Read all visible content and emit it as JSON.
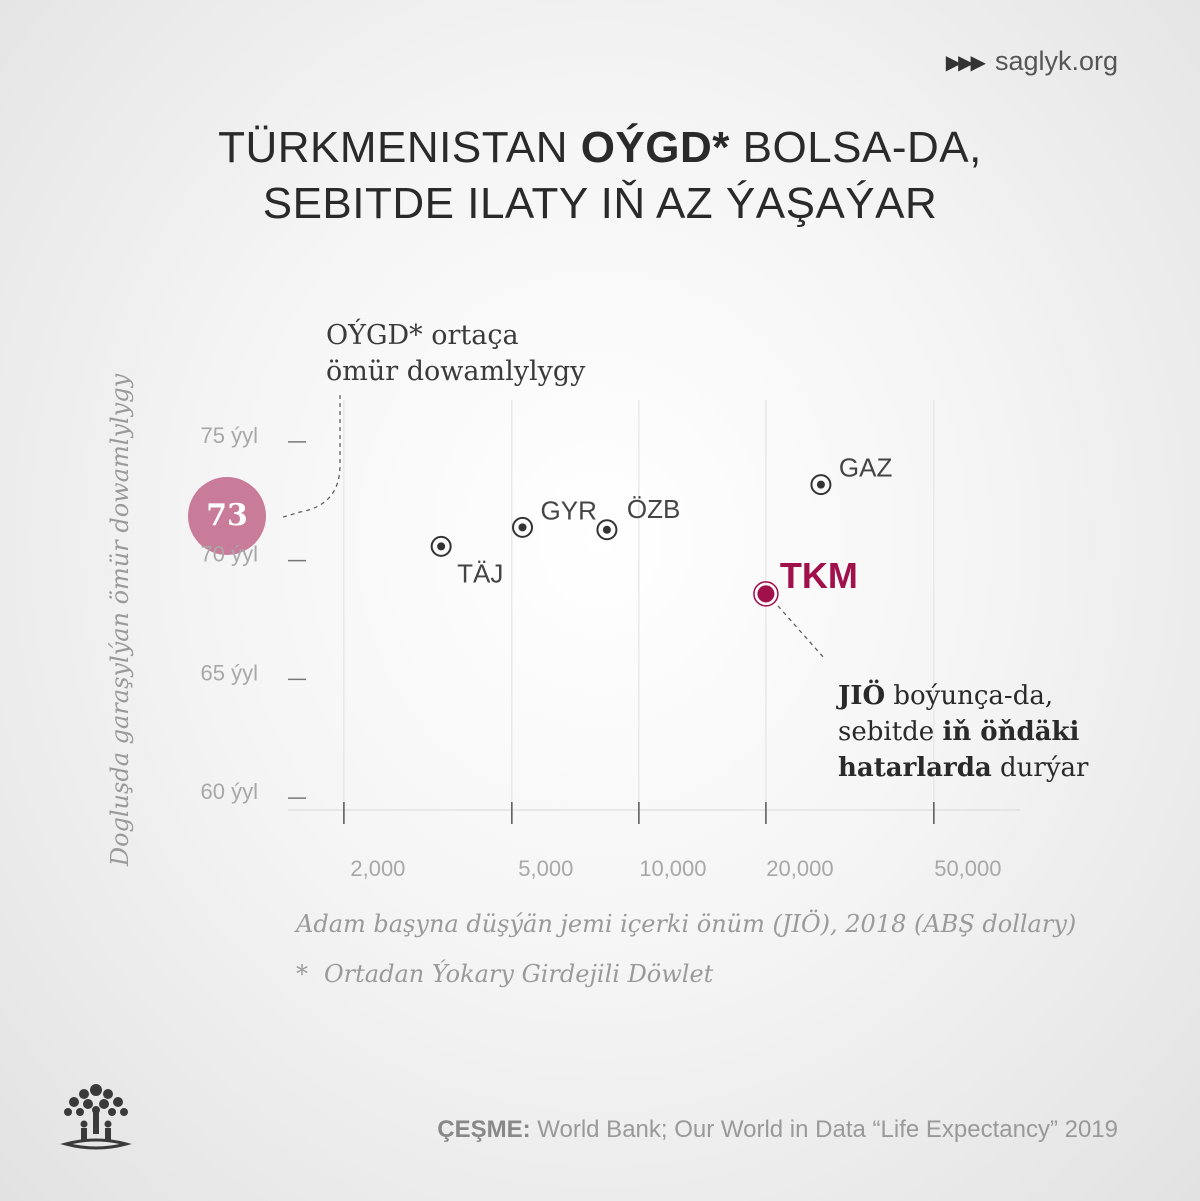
{
  "brand": {
    "arrows": "▶▶▶",
    "name": "saglyk.org"
  },
  "title": {
    "line1_pre": "TÜRKMENISTAN ",
    "line1_bold": "OÝGD*",
    "line1_post": " BOLSA-DA,",
    "line2": "SEBITDE ILATY IŇ AZ ÝAŞAÝAR"
  },
  "annotations": {
    "avg_line1": "OÝGD* ortaça",
    "avg_line2": "ömür dowamlylygy",
    "avg_value": "73",
    "tkm_line1_bold": "JIÖ",
    "tkm_line1_rest": " boýunça-da,",
    "tkm_line2_pre": "sebitde ",
    "tkm_line2_bold": "iň öňdäki",
    "tkm_line3_bold": "hatarlarda",
    "tkm_line3_rest": " durýar"
  },
  "footnote": {
    "star": "*",
    "text": "Ortadan Ýokary Girdejili Döwlet"
  },
  "source": {
    "label": "ÇEŞME:",
    "text": " World Bank; Our World in Data “Life Expectancy” 2019"
  },
  "colors": {
    "highlight": "#a0104a",
    "badge": "#c87c99",
    "point": "#333333",
    "axis_text": "#a8a8a8"
  },
  "logo": {
    "icon": "tree-people-icon"
  },
  "chart_data": {
    "type": "scatter",
    "x_scale": "log",
    "xlabel": "Adam başyna düşýän jemi içerki önüm (JIÖ), 2018 (ABŞ dollary)",
    "ylabel": "Dogluşda garaşylýan ömür dowamlylygy",
    "xlim": [
      1600,
      80000
    ],
    "ylim": [
      59.5,
      75.5
    ],
    "x_ticks": [
      2000,
      5000,
      10000,
      20000,
      50000
    ],
    "x_tick_labels": [
      "2,000",
      "5,000",
      "10,000",
      "20,000",
      "50,000"
    ],
    "y_ticks": [
      60,
      65,
      70,
      75
    ],
    "y_tick_labels": [
      "60 ýyl",
      "65 ýyl",
      "70 ýyl",
      "75 ýyl"
    ],
    "reference": {
      "label": "OÝGD* ortaça ömür dowamlylygy",
      "value": 73
    },
    "points": [
      {
        "label": "TÄJ",
        "x": 3400,
        "y": 70.6,
        "highlight": false
      },
      {
        "label": "GYR",
        "x": 5300,
        "y": 71.4,
        "highlight": false
      },
      {
        "label": "ÖZB",
        "x": 8400,
        "y": 71.3,
        "highlight": false
      },
      {
        "label": "GAZ",
        "x": 27000,
        "y": 73.2,
        "highlight": false
      },
      {
        "label": "TKM",
        "x": 20000,
        "y": 68.6,
        "highlight": true
      }
    ]
  }
}
